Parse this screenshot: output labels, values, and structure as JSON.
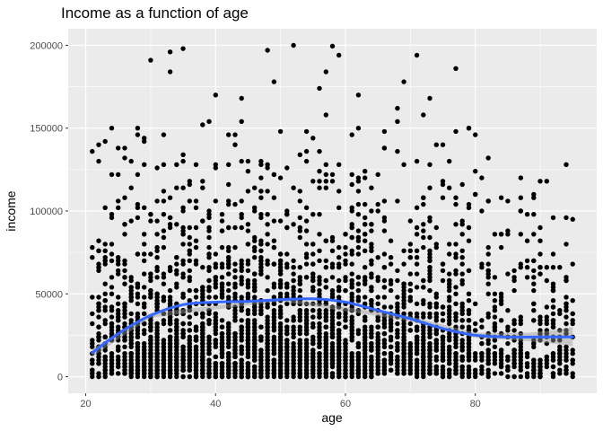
{
  "chart_data": {
    "type": "scatter",
    "title": "Income as a function of age",
    "xlabel": "age",
    "ylabel": "income",
    "xlim": [
      17.3,
      98.7
    ],
    "ylim": [
      -10000,
      210000
    ],
    "xticks": [
      20,
      40,
      60,
      80
    ],
    "xtick_labels": [
      "20",
      "40",
      "60",
      "80"
    ],
    "yticks": [
      0,
      50000,
      100000,
      150000,
      200000
    ],
    "ytick_labels": [
      "0",
      "50000",
      "100000",
      "150000",
      "200000"
    ],
    "grid": true,
    "legend": "none",
    "colors": {
      "panel": "#ebebeb",
      "grid_major": "#ffffff",
      "points": "#000000",
      "smooth_line": "#3366ff",
      "confidence_band": "#999999"
    },
    "points_description_count": 3500,
    "smooth": {
      "x": [
        21,
        25,
        30,
        35,
        40,
        45,
        50,
        55,
        60,
        65,
        70,
        75,
        80,
        85,
        90,
        95
      ],
      "y": [
        14500,
        26000,
        37000,
        43500,
        45000,
        45500,
        46500,
        47000,
        45000,
        40000,
        35000,
        29000,
        25000,
        24000,
        24000,
        24000
      ],
      "se_band": {
        "x": [
          21,
          30,
          50,
          70,
          80,
          88,
          92,
          95
        ],
        "lower": [
          12000,
          35500,
          45500,
          33500,
          23500,
          21500,
          20000,
          18500
        ],
        "upper": [
          17000,
          38500,
          47500,
          36500,
          26500,
          26500,
          28000,
          30000
        ]
      }
    },
    "points_summary": [
      {
        "age_range": [
          21,
          30
        ],
        "income_max": 150000
      },
      {
        "age_range": [
          30,
          60
        ],
        "income_max": 200000
      },
      {
        "age_range": [
          60,
          80
        ],
        "income_max": 195000
      },
      {
        "age_range": [
          80,
          95
        ],
        "income_max": 132000
      }
    ],
    "notable_points": [
      {
        "x": 22,
        "y": 140000
      },
      {
        "x": 30,
        "y": 191000
      },
      {
        "x": 35,
        "y": 198000
      },
      {
        "x": 48,
        "y": 197000
      },
      {
        "x": 58,
        "y": 199500
      },
      {
        "x": 71,
        "y": 194000
      },
      {
        "x": 77,
        "y": 186000
      },
      {
        "x": 82,
        "y": 132000
      },
      {
        "x": 87,
        "y": 120000
      },
      {
        "x": 95,
        "y": 95000
      }
    ]
  }
}
